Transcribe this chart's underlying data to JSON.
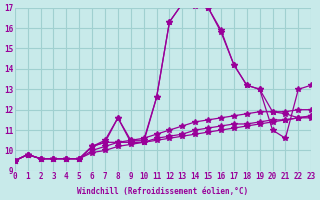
{
  "background_color": "#c8eaea",
  "grid_color": "#a0d0d0",
  "line_color": "#990099",
  "x_label": "Windchill (Refroidissement éolien,°C)",
  "xlim": [
    0,
    23
  ],
  "ylim": [
    9,
    17
  ],
  "yticks": [
    9,
    10,
    11,
    12,
    13,
    14,
    15,
    16,
    17
  ],
  "xticks": [
    0,
    1,
    2,
    3,
    4,
    5,
    6,
    7,
    8,
    9,
    10,
    11,
    12,
    13,
    14,
    15,
    16,
    17,
    18,
    19,
    20,
    21,
    22,
    23
  ],
  "hours": [
    0,
    1,
    2,
    3,
    4,
    5,
    6,
    7,
    8,
    9,
    10,
    11,
    12,
    13,
    14,
    15,
    16,
    17,
    18,
    19,
    20,
    21,
    22,
    23
  ],
  "temp_main": [
    9.5,
    9.8,
    9.6,
    9.6,
    9.6,
    9.6,
    10.2,
    10.4,
    11.6,
    10.4,
    10.4,
    12.6,
    16.3,
    17.2,
    17.1,
    17.0,
    15.8,
    14.2,
    13.2,
    13.0,
    11.0,
    10.6,
    13.0,
    13.2
  ],
  "temp_max": [
    9.5,
    9.8,
    9.6,
    9.6,
    9.6,
    9.6,
    10.2,
    10.5,
    11.6,
    10.5,
    10.5,
    12.6,
    16.3,
    17.2,
    17.2,
    17.0,
    15.9,
    14.2,
    13.2,
    13.0,
    11.9,
    11.8,
    11.6,
    11.7
  ],
  "temp_min": [
    9.5,
    9.8,
    9.6,
    9.6,
    9.6,
    9.6,
    10.2,
    10.4,
    10.4,
    10.4,
    10.4,
    10.5,
    10.6,
    10.7,
    10.8,
    10.9,
    11.0,
    11.1,
    11.2,
    11.3,
    11.4,
    11.5,
    11.6,
    11.7
  ],
  "temp_avg1": [
    9.5,
    9.8,
    9.6,
    9.6,
    9.6,
    9.6,
    10.0,
    10.2,
    10.4,
    10.5,
    10.6,
    10.8,
    11.0,
    11.2,
    11.4,
    11.5,
    11.6,
    11.7,
    11.8,
    11.9,
    11.9,
    11.9,
    12.0,
    12.0
  ],
  "temp_avg2": [
    9.5,
    9.8,
    9.6,
    9.6,
    9.6,
    9.6,
    9.9,
    10.0,
    10.2,
    10.3,
    10.4,
    10.6,
    10.7,
    10.8,
    11.0,
    11.1,
    11.2,
    11.3,
    11.3,
    11.4,
    11.5,
    11.5,
    11.6,
    11.6
  ]
}
